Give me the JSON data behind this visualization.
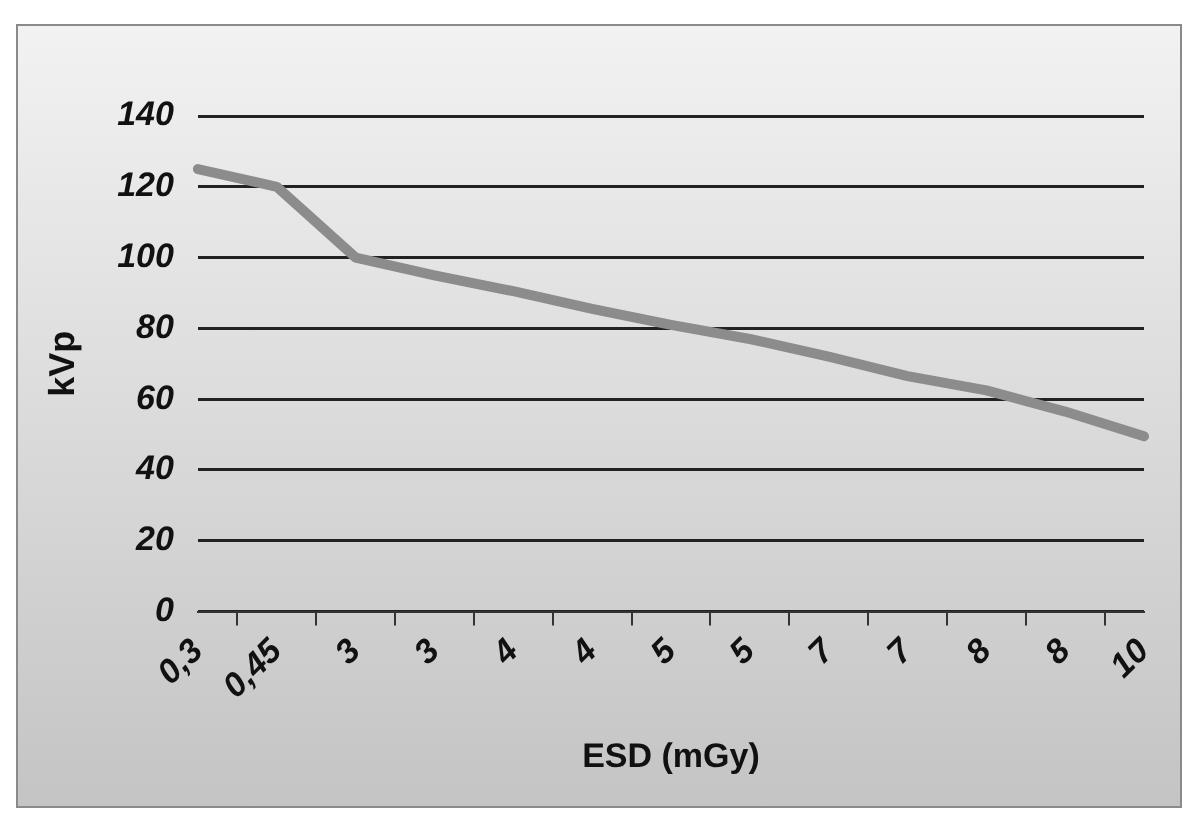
{
  "chart_data": {
    "type": "line",
    "xlabel": "ESD (mGy)",
    "ylabel": "kVp",
    "categories": [
      "0,3",
      "0,45",
      "3",
      "3",
      "4",
      "4",
      "5",
      "5",
      "7",
      "7",
      "8",
      "8",
      "10"
    ],
    "series": [
      {
        "color": "#8c8c8c",
        "values": [
          125,
          120,
          100,
          95,
          90.5,
          85.5,
          81,
          77,
          72,
          66.5,
          62.5,
          56.5,
          49.5
        ]
      }
    ],
    "ylim": [
      0,
      140
    ],
    "yticks": [
      0,
      20,
      40,
      60,
      80,
      100,
      120,
      140
    ],
    "grid": "y",
    "legend": false,
    "marker": "none",
    "line_style": "solid"
  }
}
